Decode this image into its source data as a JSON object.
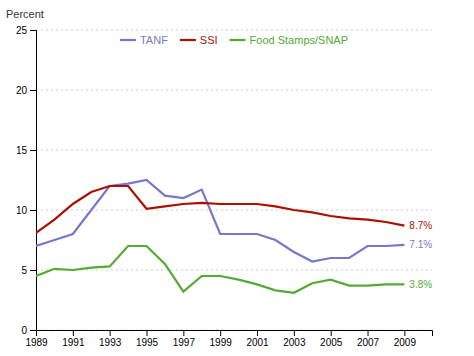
{
  "chart_data": {
    "type": "line",
    "y_label": "Percent",
    "x": [
      1989,
      1990,
      1991,
      1992,
      1993,
      1994,
      1995,
      1996,
      1997,
      1998,
      1999,
      2000,
      2001,
      2002,
      2003,
      2004,
      2005,
      2006,
      2007,
      2008,
      2009
    ],
    "series": [
      {
        "name": "TANF",
        "color": "#7777cc",
        "values": [
          7.0,
          7.5,
          8.0,
          10.0,
          12.0,
          12.2,
          12.5,
          11.2,
          11.0,
          11.7,
          8.0,
          8.0,
          8.0,
          7.5,
          6.5,
          5.7,
          6.0,
          6.0,
          7.0,
          7.0,
          7.1
        ]
      },
      {
        "name": "SSI",
        "color": "#aa1100",
        "values": [
          8.1,
          9.2,
          10.5,
          11.5,
          12.0,
          12.0,
          10.1,
          10.3,
          10.5,
          10.6,
          10.5,
          10.5,
          10.5,
          10.3,
          10.0,
          9.8,
          9.5,
          9.3,
          9.2,
          9.0,
          8.7
        ]
      },
      {
        "name": "Food Stamps/SNAP",
        "color": "#55aa33",
        "values": [
          4.5,
          5.1,
          5.0,
          5.2,
          5.3,
          7.0,
          7.0,
          5.5,
          3.2,
          4.5,
          4.5,
          4.2,
          3.8,
          3.3,
          3.1,
          3.9,
          4.2,
          3.7,
          3.7,
          3.8,
          3.8
        ]
      }
    ],
    "xlim": [
      1989,
      2010.5
    ],
    "xticks": [
      1989,
      1991,
      1993,
      1995,
      1997,
      1999,
      2001,
      2003,
      2005,
      2007,
      2009
    ],
    "ylim": [
      0,
      25
    ],
    "yticks": [
      0,
      5,
      10,
      15,
      20,
      25
    ],
    "grid": true,
    "legend": "top",
    "annotations": [
      {
        "text": "8.7%",
        "x": 2009,
        "y": 8.7,
        "color": "#aa1100"
      },
      {
        "text": "7.1%",
        "x": 2009,
        "y": 7.1,
        "color": "#7777cc"
      },
      {
        "text": "3.8%",
        "x": 2009,
        "y": 3.8,
        "color": "#55aa33"
      }
    ]
  }
}
